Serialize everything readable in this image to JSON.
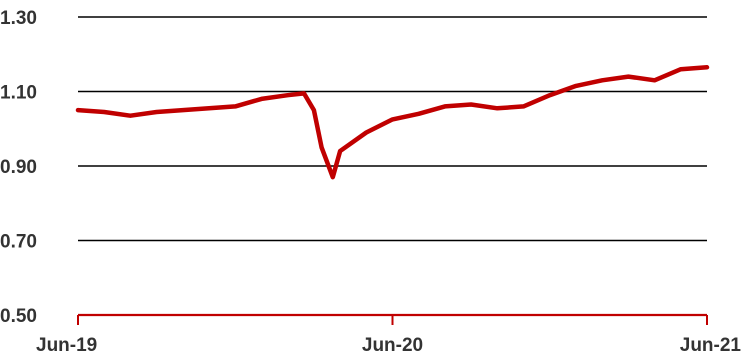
{
  "chart_data": {
    "type": "line",
    "title": "",
    "xlabel": "",
    "ylabel": "",
    "ylim": [
      0.5,
      1.3
    ],
    "yticks": [
      "1.30",
      "1.10",
      "0.90",
      "0.70",
      "0.50"
    ],
    "ytick_values": [
      1.3,
      1.1,
      0.9,
      0.7,
      0.5
    ],
    "xticks": [
      "Jun-19",
      "Jun-20",
      "Jun-21"
    ],
    "xtick_values": [
      "2019-06",
      "2020-06",
      "2021-06"
    ],
    "x_start": "2019-06",
    "x_end": "2021-06",
    "grid": true,
    "legend": "none",
    "colors": {
      "series": "#c00000",
      "axis": "#c00000",
      "grid": "#000000",
      "text": "#333333"
    },
    "series": [
      {
        "name": "",
        "x": [
          "2019-06",
          "2019-07",
          "2019-08",
          "2019-09",
          "2019-10",
          "2019-11",
          "2019-12",
          "2020-01",
          "2020-02",
          "2020-02-20",
          "2020-03-01",
          "2020-03-10",
          "2020-03-23",
          "2020-04",
          "2020-05",
          "2020-06",
          "2020-07",
          "2020-08",
          "2020-09",
          "2020-10",
          "2020-11",
          "2020-12",
          "2021-01",
          "2021-02",
          "2021-03",
          "2021-04",
          "2021-05",
          "2021-06"
        ],
        "values": [
          1.05,
          1.045,
          1.035,
          1.045,
          1.05,
          1.055,
          1.06,
          1.08,
          1.09,
          1.095,
          1.05,
          0.95,
          0.87,
          0.94,
          0.99,
          1.025,
          1.04,
          1.06,
          1.065,
          1.055,
          1.06,
          1.09,
          1.115,
          1.13,
          1.14,
          1.13,
          1.16,
          1.165
        ]
      }
    ]
  }
}
